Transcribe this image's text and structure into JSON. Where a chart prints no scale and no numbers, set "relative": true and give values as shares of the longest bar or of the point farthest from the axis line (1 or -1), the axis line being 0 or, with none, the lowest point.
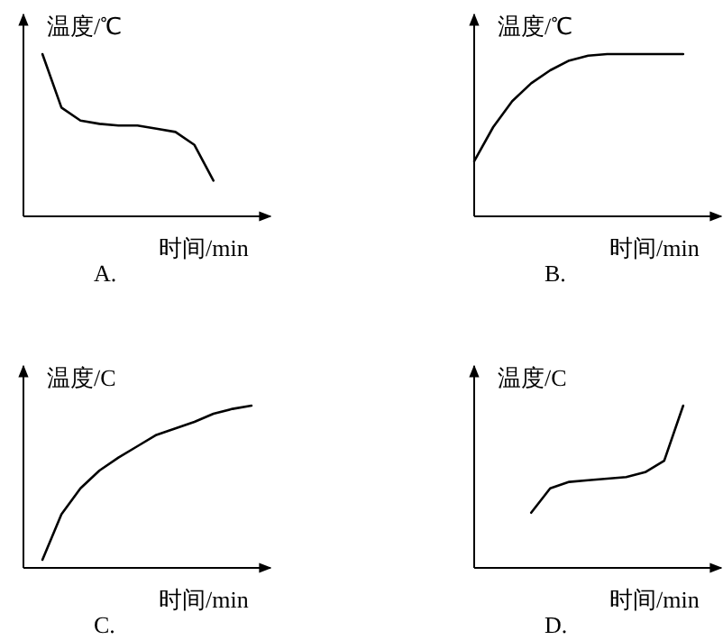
{
  "chart_data": [
    {
      "type": "line",
      "relative": true,
      "ylabel": "温度/℃",
      "xlabel": "时间/min",
      "annotations": [
        "A."
      ],
      "categories": [
        null,
        null,
        null,
        null,
        null,
        null,
        null,
        null,
        null,
        null,
        null,
        null,
        null,
        null
      ],
      "series": [
        {
          "color": "#000000",
          "values": [
            null,
            1,
            0.67,
            0.59,
            0.57,
            0.56,
            0.56,
            0.54,
            0.52,
            0.44,
            0.22,
            null,
            null,
            null
          ]
        }
      ]
    },
    {
      "type": "line",
      "relative": true,
      "ylabel": "温度/℃",
      "xlabel": "时间/min",
      "annotations": [
        "B."
      ],
      "categories": [
        null,
        null,
        null,
        null,
        null,
        null,
        null,
        null,
        null,
        null,
        null,
        null,
        null,
        null
      ],
      "series": [
        {
          "color": "#000000",
          "values": [
            0.34,
            0.55,
            0.71,
            0.82,
            0.9,
            0.96,
            0.99,
            1,
            1,
            1,
            1,
            1,
            null,
            null
          ]
        }
      ]
    },
    {
      "type": "line",
      "relative": true,
      "ylabel": "温度/C",
      "xlabel": "时间/min",
      "annotations": [
        "C."
      ],
      "categories": [
        null,
        null,
        null,
        null,
        null,
        null,
        null,
        null,
        null,
        null,
        null,
        null,
        null,
        null
      ],
      "series": [
        {
          "color": "#000000",
          "values": [
            null,
            0.05,
            0.33,
            0.49,
            0.6,
            0.68,
            0.75,
            0.82,
            0.86,
            0.9,
            0.95,
            0.98,
            1,
            null
          ]
        }
      ]
    },
    {
      "type": "line",
      "relative": true,
      "ylabel": "温度/C",
      "xlabel": "时间/min",
      "annotations": [
        "D."
      ],
      "categories": [
        null,
        null,
        null,
        null,
        null,
        null,
        null,
        null,
        null,
        null,
        null,
        null,
        null,
        null
      ],
      "series": [
        {
          "color": "#000000",
          "values": [
            null,
            null,
            null,
            0.34,
            0.49,
            0.53,
            0.54,
            0.55,
            0.56,
            0.59,
            0.66,
            1,
            null,
            null
          ]
        }
      ]
    }
  ]
}
